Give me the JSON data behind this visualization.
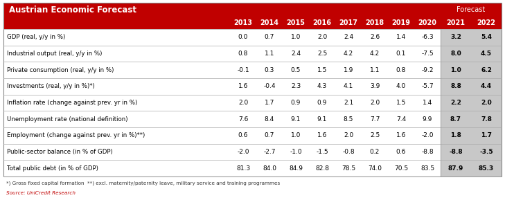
{
  "title": "Austrian Economic Forecast",
  "forecast_label": "Forecast",
  "header_bg": "#C00000",
  "forecast_col_bg": "#C8C8C8",
  "row_bg": "#FFFFFF",
  "separator_color": "#AAAAAA",
  "years": [
    "2013",
    "2014",
    "2015",
    "2016",
    "2017",
    "2018",
    "2019",
    "2020",
    "2021",
    "2022"
  ],
  "rows": [
    {
      "label": "GDP (real, y/y in %)",
      "values": [
        "0.0",
        "0.7",
        "1.0",
        "2.0",
        "2.4",
        "2.6",
        "1.4",
        "-6.3",
        "3.2",
        "5.4"
      ]
    },
    {
      "label": "Industrial output (real, y/y in %)",
      "values": [
        "0.8",
        "1.1",
        "2.4",
        "2.5",
        "4.2",
        "4.2",
        "0.1",
        "-7.5",
        "8.0",
        "4.5"
      ]
    },
    {
      "label": "Private consumption (real, y/y in %)",
      "values": [
        "-0.1",
        "0.3",
        "0.5",
        "1.5",
        "1.9",
        "1.1",
        "0.8",
        "-9.2",
        "1.0",
        "6.2"
      ]
    },
    {
      "label": "Investments (real, y/y in %)*)",
      "values": [
        "1.6",
        "-0.4",
        "2.3",
        "4.3",
        "4.1",
        "3.9",
        "4.0",
        "-5.7",
        "8.8",
        "4.4"
      ]
    },
    {
      "label": "Inflation rate (change against prev. yr in %)",
      "values": [
        "2.0",
        "1.7",
        "0.9",
        "0.9",
        "2.1",
        "2.0",
        "1.5",
        "1.4",
        "2.2",
        "2.0"
      ]
    },
    {
      "label": "Unemployment rate (national definition)",
      "values": [
        "7.6",
        "8.4",
        "9.1",
        "9.1",
        "8.5",
        "7.7",
        "7.4",
        "9.9",
        "8.7",
        "7.8"
      ]
    },
    {
      "label": "Employment (change against prev. yr in %)**)",
      "values": [
        "0.6",
        "0.7",
        "1.0",
        "1.6",
        "2.0",
        "2.5",
        "1.6",
        "-2.0",
        "1.8",
        "1.7"
      ]
    },
    {
      "label": "Public-sector balance (in % of GDP)",
      "values": [
        "-2.0",
        "-2.7",
        "-1.0",
        "-1.5",
        "-0.8",
        "0.2",
        "0.6",
        "-8.8",
        "-8.8",
        "-3.5"
      ]
    },
    {
      "label": "Total public debt (in % of GDP)",
      "values": [
        "81.3",
        "84.0",
        "84.9",
        "82.8",
        "78.5",
        "74.0",
        "70.5",
        "83.5",
        "87.9",
        "85.3"
      ]
    }
  ],
  "footnote1": "*) Gross fixed capital formation  **) excl. maternity/paternity leave, military service and training programmes",
  "footnote2": "Source: UniCredit Research",
  "footnote2_color": "#C00000"
}
